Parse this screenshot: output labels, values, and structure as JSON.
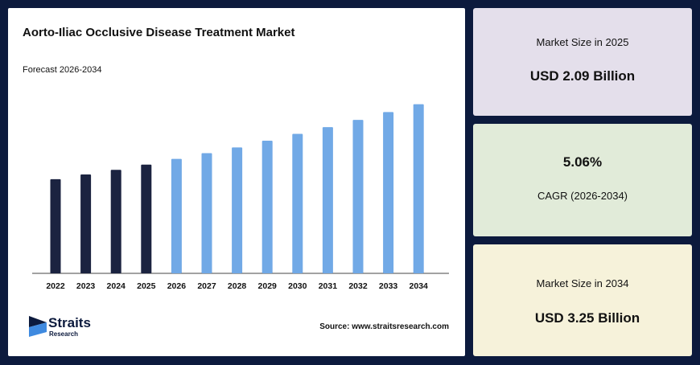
{
  "title": "Aorto-Iliac Occlusive Disease Treatment Market",
  "subtitle": "Forecast 2026-2034",
  "source": "Source: www.straitsresearch.com",
  "logo": {
    "name": "Straits",
    "sub": "Research"
  },
  "cards": [
    {
      "label": "Market Size in 2025",
      "value": "USD 2.09 Billion"
    },
    {
      "value": "5.06%",
      "label": "CAGR (2026-2034)"
    },
    {
      "label": "Market Size in 2034",
      "value": "USD 3.25 Billion"
    }
  ],
  "colors": {
    "historical": "#1b2340",
    "forecast": "#71a9e6",
    "background": "#0c1a3d"
  },
  "chart_data": {
    "type": "bar",
    "categories": [
      "2022",
      "2023",
      "2024",
      "2025",
      "2026",
      "2027",
      "2028",
      "2029",
      "2030",
      "2031",
      "2032",
      "2033",
      "2034"
    ],
    "values": [
      1.81,
      1.9,
      1.99,
      2.09,
      2.2,
      2.31,
      2.42,
      2.55,
      2.68,
      2.81,
      2.95,
      3.1,
      3.25
    ],
    "forecast_start_index": 4,
    "ylim": [
      0,
      3.6
    ],
    "grid": false,
    "title": "Aorto-Iliac Occlusive Disease Treatment Market",
    "subtitle": "Forecast 2026-2034",
    "xlabel": "",
    "ylabel": ""
  }
}
